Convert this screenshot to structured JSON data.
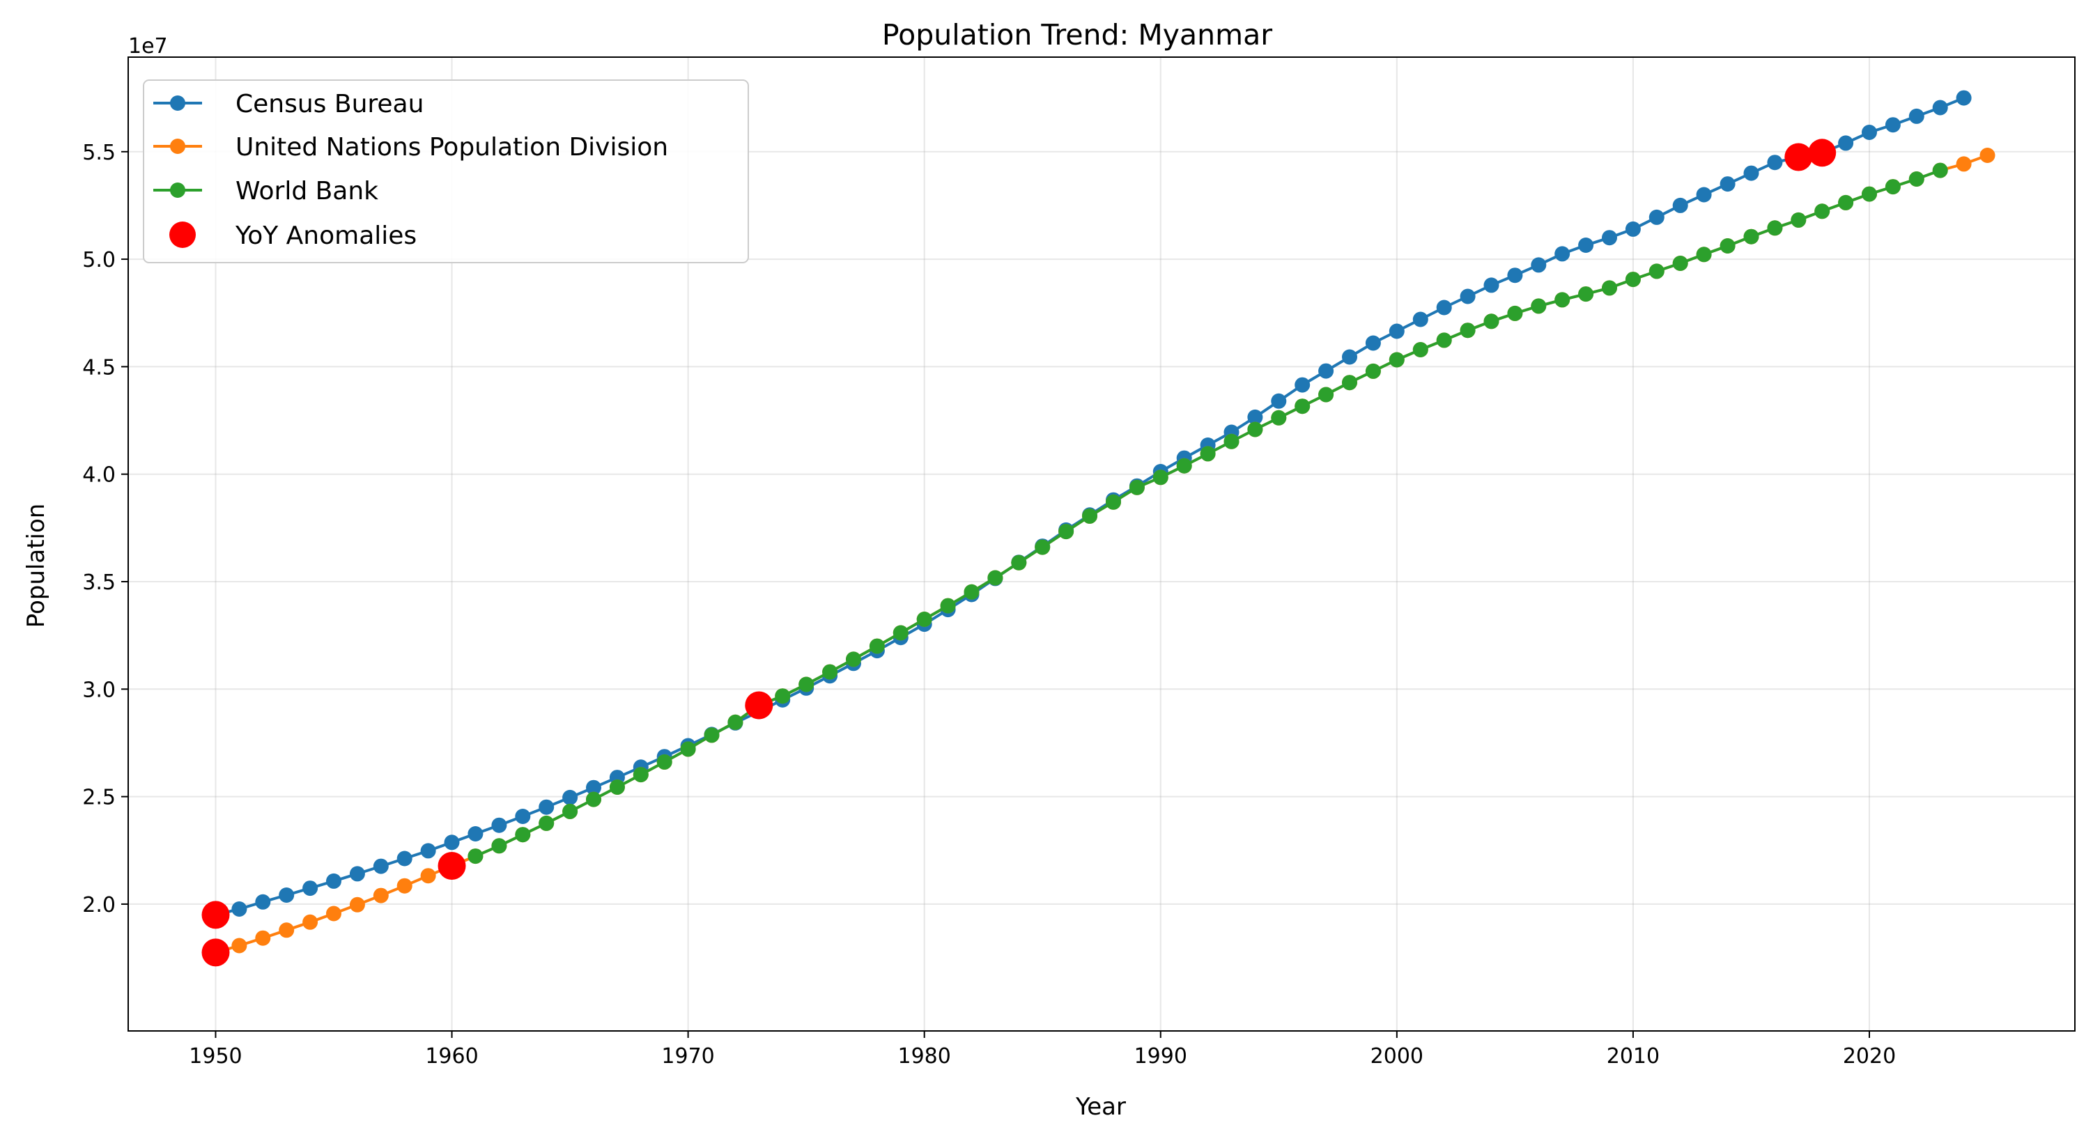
{
  "chart_data": {
    "type": "line",
    "title": "Population Trend: Myanmar",
    "xlabel": "Year",
    "ylabel": "Population",
    "y_offset_label": "1e7",
    "xlim": [
      1946.3,
      2028.7
    ],
    "ylim": [
      14100000,
      59400000
    ],
    "x_ticks": [
      1950,
      1960,
      1970,
      1980,
      1990,
      2000,
      2010,
      2020
    ],
    "y_ticks": [
      20000000,
      25000000,
      30000000,
      35000000,
      40000000,
      45000000,
      50000000,
      55000000
    ],
    "y_tick_labels": [
      "2.0",
      "2.5",
      "3.0",
      "3.5",
      "4.0",
      "4.5",
      "5.0",
      "5.5"
    ],
    "grid": true,
    "legend_position": "upper left",
    "series": [
      {
        "name": "Census Bureau",
        "color": "#1f77b4",
        "x": [
          1950,
          1951,
          1952,
          1953,
          1954,
          1955,
          1956,
          1957,
          1958,
          1959,
          1960,
          1961,
          1962,
          1963,
          1964,
          1965,
          1966,
          1967,
          1968,
          1969,
          1970,
          1971,
          1972,
          1973,
          1974,
          1975,
          1976,
          1977,
          1978,
          1979,
          1980,
          1981,
          1982,
          1983,
          1984,
          1985,
          1986,
          1987,
          1988,
          1989,
          1990,
          1991,
          1992,
          1993,
          1994,
          1995,
          1996,
          1997,
          1998,
          1999,
          2000,
          2001,
          2002,
          2003,
          2004,
          2005,
          2006,
          2007,
          2008,
          2009,
          2010,
          2011,
          2012,
          2013,
          2014,
          2015,
          2016,
          2017,
          2018,
          2019,
          2020,
          2021,
          2022,
          2023,
          2024
        ],
        "values": [
          19500000,
          19770000,
          20100000,
          20420000,
          20740000,
          21070000,
          21410000,
          21760000,
          22120000,
          22480000,
          22870000,
          23270000,
          23670000,
          24080000,
          24510000,
          24960000,
          25420000,
          25890000,
          26370000,
          26860000,
          27370000,
          27890000,
          28430000,
          28960000,
          29500000,
          30050000,
          30620000,
          31200000,
          31790000,
          32400000,
          33020000,
          33700000,
          34400000,
          35150000,
          35900000,
          36650000,
          37400000,
          38100000,
          38800000,
          39450000,
          40120000,
          40750000,
          41350000,
          41950000,
          42650000,
          43400000,
          44150000,
          44800000,
          45450000,
          46100000,
          46650000,
          47200000,
          47750000,
          48270000,
          48790000,
          49250000,
          49730000,
          50250000,
          50650000,
          51000000,
          51400000,
          51950000,
          52500000,
          53000000,
          53500000,
          54000000,
          54500000,
          54750000,
          54950000,
          55400000,
          55900000,
          56250000,
          56650000,
          57050000,
          57500000
        ]
      },
      {
        "name": "United Nations Population Division",
        "color": "#ff7f0e",
        "x": [
          1950,
          1951,
          1952,
          1953,
          1954,
          1955,
          1956,
          1957,
          1958,
          1959,
          1960,
          1961,
          1962,
          1963,
          1964,
          1965,
          1966,
          1967,
          1968,
          1969,
          1970,
          1971,
          1972,
          1973,
          1974,
          1975,
          1976,
          1977,
          1978,
          1979,
          1980,
          1981,
          1982,
          1983,
          1984,
          1985,
          1986,
          1987,
          1988,
          1989,
          1990,
          1991,
          1992,
          1993,
          1994,
          1995,
          1996,
          1997,
          1998,
          1999,
          2000,
          2001,
          2002,
          2003,
          2004,
          2005,
          2006,
          2007,
          2008,
          2009,
          2010,
          2011,
          2012,
          2013,
          2014,
          2015,
          2016,
          2017,
          2018,
          2019,
          2020,
          2021,
          2022,
          2023,
          2024,
          2025
        ],
        "values": [
          17750000,
          18070000,
          18420000,
          18790000,
          19160000,
          19560000,
          19970000,
          20400000,
          20850000,
          21320000,
          21780000,
          22230000,
          22710000,
          23230000,
          23760000,
          24310000,
          24870000,
          25440000,
          26020000,
          26610000,
          27210000,
          27860000,
          28460000,
          29250000,
          29680000,
          30220000,
          30800000,
          31390000,
          32000000,
          32620000,
          33250000,
          33880000,
          34520000,
          35180000,
          35880000,
          36600000,
          37330000,
          38050000,
          38700000,
          39380000,
          39850000,
          40390000,
          40950000,
          41520000,
          42080000,
          42620000,
          43160000,
          43700000,
          44260000,
          44790000,
          45320000,
          45790000,
          46230000,
          46690000,
          47110000,
          47480000,
          47820000,
          48110000,
          48380000,
          48660000,
          49060000,
          49440000,
          49810000,
          50220000,
          50620000,
          51050000,
          51450000,
          51820000,
          52230000,
          52630000,
          53030000,
          53370000,
          53730000,
          54130000,
          54430000,
          54830000
        ]
      },
      {
        "name": "World Bank",
        "color": "#2ca02c",
        "x": [
          1961,
          1962,
          1963,
          1964,
          1965,
          1966,
          1967,
          1968,
          1969,
          1970,
          1971,
          1972,
          1973,
          1974,
          1975,
          1976,
          1977,
          1978,
          1979,
          1980,
          1981,
          1982,
          1983,
          1984,
          1985,
          1986,
          1987,
          1988,
          1989,
          1990,
          1991,
          1992,
          1993,
          1994,
          1995,
          1996,
          1997,
          1998,
          1999,
          2000,
          2001,
          2002,
          2003,
          2004,
          2005,
          2006,
          2007,
          2008,
          2009,
          2010,
          2011,
          2012,
          2013,
          2014,
          2015,
          2016,
          2017,
          2018,
          2019,
          2020,
          2021,
          2022,
          2023
        ],
        "values": [
          22230000,
          22710000,
          23230000,
          23760000,
          24310000,
          24870000,
          25440000,
          26020000,
          26610000,
          27210000,
          27860000,
          28460000,
          29250000,
          29680000,
          30220000,
          30800000,
          31390000,
          32000000,
          32620000,
          33250000,
          33880000,
          34520000,
          35180000,
          35880000,
          36600000,
          37330000,
          38050000,
          38700000,
          39380000,
          39850000,
          40390000,
          40950000,
          41520000,
          42080000,
          42620000,
          43160000,
          43700000,
          44260000,
          44790000,
          45320000,
          45790000,
          46230000,
          46690000,
          47110000,
          47480000,
          47820000,
          48110000,
          48380000,
          48660000,
          49060000,
          49440000,
          49810000,
          50220000,
          50620000,
          51050000,
          51450000,
          51820000,
          52230000,
          52630000,
          53030000,
          53370000,
          53730000,
          54130000
        ]
      }
    ],
    "anomalies": {
      "name": "YoY Anomalies",
      "color": "#ff0000",
      "points": [
        {
          "x": 1950,
          "y": 19500000
        },
        {
          "x": 1950,
          "y": 17750000
        },
        {
          "x": 1960,
          "y": 21780000
        },
        {
          "x": 1973,
          "y": 29250000
        },
        {
          "x": 2017,
          "y": 54750000
        },
        {
          "x": 2018,
          "y": 54950000
        }
      ]
    }
  }
}
